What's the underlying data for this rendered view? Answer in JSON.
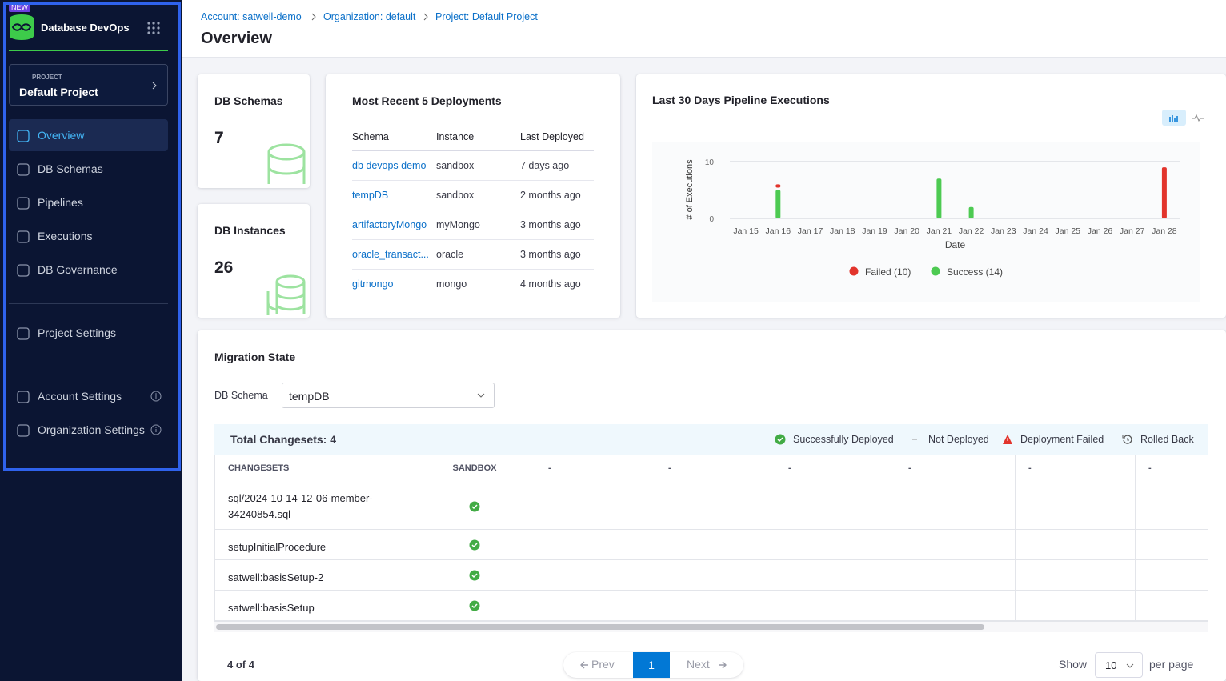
{
  "sidebar": {
    "badge": "NEW",
    "product": "Database DevOps",
    "project_label": "PROJECT",
    "project_name": "Default Project",
    "nav": [
      "Overview",
      "DB Schemas",
      "Pipelines",
      "Executions",
      "DB Governance"
    ],
    "settings": [
      "Project Settings"
    ],
    "account": [
      "Account Settings",
      "Organization Settings"
    ]
  },
  "header": {
    "breadcrumbs": [
      "Account: satwell-demo",
      "Organization: default",
      "Project: Default Project"
    ],
    "title": "Overview"
  },
  "cards": [
    {
      "title": "DB Schemas",
      "value": 7
    },
    {
      "title": "DB Instances",
      "value": 26
    }
  ],
  "deployments": {
    "title": "Most Recent 5 Deployments",
    "columns": [
      "Schema",
      "Instance",
      "Last Deployed"
    ],
    "rows": [
      [
        "db devops demo",
        "sandbox",
        "7 days ago"
      ],
      [
        "tempDB",
        "sandbox",
        "2 months ago"
      ],
      [
        "artifactoryMongo",
        "myMongo",
        "3 months ago"
      ],
      [
        "oracle_transact...",
        "oracle",
        "3 months ago"
      ],
      [
        "gitmongo",
        "mongo",
        "4 months ago"
      ]
    ]
  },
  "chart_data": {
    "type": "bar",
    "stacked": true,
    "title": "Last 30 Days Pipeline Executions",
    "x_label": "Date",
    "y_label": "# of Executions",
    "categories": [
      "Jan 15",
      "Jan 16",
      "Jan 17",
      "Jan 18",
      "Jan 19",
      "Jan 20",
      "Jan 21",
      "Jan 22",
      "Jan 23",
      "Jan 24",
      "Jan 25",
      "Jan 26",
      "Jan 27",
      "Jan 28"
    ],
    "series": [
      {
        "name": "Failed (10)",
        "color": "#e2342c",
        "values": [
          0,
          1,
          0,
          0,
          0,
          0,
          0,
          0,
          0,
          0,
          0,
          0,
          0,
          9
        ]
      },
      {
        "name": "Success (14)",
        "color": "#4dca52",
        "values": [
          0,
          5,
          0,
          0,
          0,
          0,
          7,
          2,
          0,
          0,
          0,
          0,
          0,
          0
        ]
      }
    ],
    "ylim": [
      0,
      10
    ],
    "yticks": [
      0,
      10
    ],
    "grid": true,
    "legend": "bottom"
  },
  "migration": {
    "title": "Migration State",
    "filter_label": "DB Schema",
    "filter_value": "tempDB",
    "total": "Total Changesets: 4",
    "legend": [
      "Successfully Deployed",
      "Not Deployed",
      "Deployment Failed",
      "Rolled Back"
    ],
    "columns": [
      "CHANGESETS",
      "SANDBOX",
      "-",
      "-",
      "-",
      "-",
      "-",
      "-"
    ],
    "rows": [
      "sql/2024-10-14-12-06-member-34240854.sql",
      "setupInitialProcedure",
      "satwell:basisSetup-2",
      "satwell:basisSetup"
    ]
  },
  "pagination": {
    "summary": "4 of 4",
    "prev": "Prev",
    "page": 1,
    "next": "Next",
    "show": "Show",
    "page_size": 10,
    "per_page": "per page"
  }
}
